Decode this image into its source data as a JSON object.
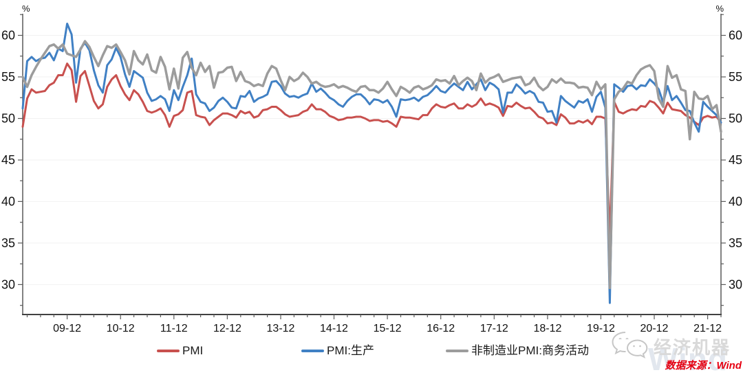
{
  "chart": {
    "unit_left": "%",
    "unit_right": "%"
  },
  "chart_data": {
    "type": "line",
    "title": "",
    "x_frequency": "monthly",
    "x_start": "2009-02",
    "x_end": "2022-03",
    "x_tick_labels": [
      "09-12",
      "10-12",
      "11-12",
      "12-12",
      "13-12",
      "14-12",
      "15-12",
      "16-12",
      "17-12",
      "18-12",
      "19-12",
      "20-12",
      "21-12"
    ],
    "y_ticks": [
      30,
      35,
      40,
      45,
      50,
      55,
      60
    ],
    "ylim": [
      26.4,
      62.6
    ],
    "grid": "horizontal-light",
    "legend_position": "bottom-center",
    "series": [
      {
        "name": "PMI",
        "color": "#C8504E",
        "values": [
          49.0,
          52.4,
          53.5,
          53.1,
          53.2,
          53.3,
          54.0,
          54.3,
          55.2,
          55.2,
          56.6,
          55.8,
          52.0,
          55.1,
          55.7,
          53.9,
          52.1,
          51.2,
          51.7,
          53.8,
          54.7,
          55.2,
          53.9,
          52.9,
          52.2,
          53.4,
          52.9,
          52.0,
          50.9,
          50.7,
          50.9,
          51.2,
          50.4,
          49.0,
          50.3,
          50.5,
          51.0,
          53.1,
          53.3,
          50.4,
          50.2,
          50.1,
          49.2,
          49.8,
          50.2,
          50.6,
          50.6,
          50.4,
          50.1,
          50.9,
          50.6,
          50.8,
          50.1,
          50.3,
          51.0,
          51.1,
          51.4,
          51.4,
          51.0,
          50.5,
          50.2,
          50.3,
          50.4,
          50.8,
          51.0,
          51.7,
          51.1,
          51.1,
          50.8,
          50.3,
          50.1,
          49.8,
          49.9,
          50.1,
          50.1,
          50.2,
          50.2,
          50.0,
          49.7,
          49.8,
          49.8,
          49.6,
          49.7,
          49.4,
          49.0,
          50.2,
          50.1,
          50.1,
          50.0,
          49.9,
          50.4,
          50.4,
          51.2,
          51.7,
          51.4,
          51.3,
          51.6,
          51.8,
          51.2,
          51.2,
          51.7,
          51.4,
          51.7,
          52.4,
          51.6,
          51.8,
          51.6,
          51.3,
          50.3,
          51.5,
          51.4,
          51.9,
          51.5,
          51.2,
          51.3,
          50.8,
          50.2,
          50.0,
          49.4,
          49.5,
          49.2,
          50.5,
          50.1,
          49.4,
          49.4,
          49.7,
          49.5,
          49.8,
          49.3,
          50.2,
          50.2,
          50.0,
          35.7,
          52.0,
          50.8,
          50.6,
          50.9,
          51.1,
          51.0,
          51.5,
          51.4,
          52.1,
          51.9,
          51.3,
          50.6,
          51.9,
          51.1,
          51.0,
          50.9,
          50.4,
          50.1,
          49.6,
          49.2,
          50.1,
          50.3,
          50.1,
          50.2,
          49.5
        ]
      },
      {
        "name": "PMI:生产",
        "color": "#4080C4",
        "values": [
          51.2,
          56.9,
          57.4,
          56.9,
          57.2,
          57.3,
          57.9,
          57.0,
          58.4,
          58.1,
          61.4,
          60.1,
          54.3,
          58.4,
          59.1,
          58.2,
          55.8,
          54.0,
          53.1,
          56.4,
          57.1,
          58.5,
          57.4,
          55.3,
          53.8,
          55.7,
          55.3,
          54.9,
          53.1,
          52.1,
          52.3,
          52.7,
          52.3,
          50.9,
          53.4,
          52.2,
          53.8,
          55.2,
          57.2,
          52.9,
          52.0,
          51.8,
          50.9,
          51.3,
          52.1,
          52.5,
          52.0,
          51.3,
          51.2,
          52.7,
          52.6,
          53.3,
          52.0,
          52.4,
          52.6,
          52.9,
          54.4,
          54.5,
          53.9,
          53.0,
          52.6,
          52.7,
          52.5,
          52.8,
          53.0,
          54.2,
          53.2,
          53.6,
          53.1,
          52.5,
          52.2,
          51.7,
          51.4,
          52.1,
          52.6,
          52.9,
          52.9,
          52.4,
          51.7,
          52.3,
          52.2,
          51.9,
          52.2,
          51.4,
          50.2,
          52.3,
          52.2,
          52.3,
          52.5,
          52.1,
          52.6,
          52.8,
          53.3,
          53.9,
          53.3,
          53.1,
          53.7,
          54.2,
          53.8,
          53.4,
          54.4,
          53.5,
          54.1,
          54.7,
          53.4,
          54.3,
          54.0,
          53.5,
          50.7,
          53.1,
          53.1,
          54.1,
          53.6,
          53.0,
          53.3,
          53.0,
          52.0,
          51.9,
          50.8,
          50.9,
          49.5,
          52.7,
          52.1,
          51.7,
          51.3,
          52.1,
          51.9,
          52.3,
          50.8,
          52.6,
          53.2,
          51.3,
          27.8,
          54.1,
          53.7,
          53.2,
          53.9,
          54.0,
          53.5,
          54.0,
          53.9,
          54.7,
          54.2,
          53.5,
          51.9,
          53.9,
          52.2,
          52.7,
          51.9,
          51.0,
          50.9,
          49.5,
          48.4,
          52.0,
          51.4,
          50.9,
          50.4,
          49.5
        ]
      },
      {
        "name": "非制造业PMI:商务活动",
        "color": "#9C9C9C",
        "values": [
          55.0,
          53.8,
          55.2,
          56.2,
          57.1,
          57.9,
          58.7,
          58.9,
          58.4,
          58.9,
          57.8,
          57.6,
          57.4,
          58.3,
          59.3,
          58.6,
          57.4,
          56.3,
          57.6,
          58.7,
          58.5,
          58.9,
          58.0,
          57.0,
          55.3,
          58.1,
          57.0,
          56.5,
          57.7,
          55.8,
          55.5,
          57.4,
          56.2,
          53.5,
          56.0,
          53.6,
          57.3,
          58.0,
          56.1,
          55.2,
          56.7,
          55.6,
          56.3,
          53.7,
          55.5,
          55.6,
          56.1,
          56.2,
          54.5,
          55.6,
          54.5,
          54.3,
          53.9,
          54.1,
          53.9,
          55.4,
          56.3,
          56.0,
          54.6,
          53.4,
          55.0,
          54.5,
          54.8,
          55.5,
          55.0,
          54.2,
          54.4,
          54.0,
          53.8,
          53.9,
          54.1,
          53.7,
          53.9,
          53.7,
          53.4,
          53.2,
          53.8,
          53.9,
          53.4,
          53.4,
          53.1,
          53.6,
          54.4,
          53.5,
          52.7,
          53.8,
          53.5,
          53.1,
          53.7,
          53.9,
          53.5,
          53.7,
          54.0,
          54.7,
          54.5,
          54.6,
          54.2,
          55.1,
          54.0,
          54.5,
          54.9,
          54.5,
          53.4,
          55.4,
          54.3,
          54.8,
          55.0,
          55.3,
          54.4,
          54.6,
          54.8,
          54.9,
          55.0,
          54.0,
          54.2,
          54.9,
          53.9,
          53.4,
          53.8,
          54.7,
          54.3,
          54.8,
          54.3,
          54.3,
          54.2,
          53.7,
          53.8,
          53.7,
          52.8,
          54.4,
          53.5,
          54.1,
          29.6,
          52.3,
          53.2,
          53.6,
          54.4,
          54.2,
          55.2,
          55.9,
          56.2,
          56.4,
          55.7,
          52.4,
          51.4,
          56.3,
          54.9,
          55.2,
          53.5,
          53.3,
          47.5,
          53.2,
          52.4,
          52.3,
          52.7,
          51.1,
          51.6,
          48.4
        ]
      }
    ]
  },
  "watermark": {
    "icon": "wechat-icon",
    "brand_text": "经济机器",
    "background_text": "Wind"
  },
  "footer": {
    "source_text": "数据来源：Wind",
    "source_color": "#E60012"
  }
}
